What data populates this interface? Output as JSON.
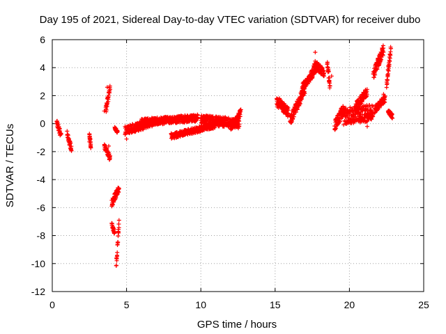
{
  "chart_data": {
    "type": "scatter",
    "title": "Day 195 of 2021, Sidereal Day-to-day VTEC variation (SDTVAR) for receiver dubo",
    "xlabel": "GPS time / hours",
    "ylabel": "SDTVAR / TECUs",
    "xlim": [
      0,
      25
    ],
    "ylim": [
      -12,
      6
    ],
    "xticks": [
      "0",
      "5",
      "10",
      "15",
      "20",
      "25"
    ],
    "yticks": [
      "-12",
      "-10",
      "-8",
      "-6",
      "-4",
      "-2",
      "0",
      "2",
      "4",
      "6"
    ],
    "grid": true,
    "marker": "plus",
    "color": "#ff0000",
    "series": [
      {
        "name": "SDTVAR",
        "segments": [
          {
            "x0": 0.3,
            "x1": 0.6,
            "y0": 0.1,
            "y1": -0.9,
            "spread": 0.4
          },
          {
            "x0": 1.0,
            "x1": 1.3,
            "y0": -0.6,
            "y1": -1.9,
            "spread": 0.5
          },
          {
            "x0": 2.5,
            "x1": 2.6,
            "y0": -0.7,
            "y1": -1.7,
            "spread": 0.3
          },
          {
            "x0": 3.6,
            "x1": 3.9,
            "y0": 1.0,
            "y1": 2.5,
            "spread": 0.6
          },
          {
            "x0": 3.5,
            "x1": 3.9,
            "y0": -1.6,
            "y1": -2.5,
            "spread": 0.4
          },
          {
            "x0": 4.2,
            "x1": 4.4,
            "y0": -0.3,
            "y1": -0.6,
            "spread": 0.2
          },
          {
            "x0": 4.0,
            "x1": 4.5,
            "y0": -5.7,
            "y1": -4.6,
            "spread": 0.5
          },
          {
            "x0": 4.0,
            "x1": 4.2,
            "y0": -7.2,
            "y1": -7.8,
            "spread": 0.3
          },
          {
            "x0": 4.3,
            "x1": 4.5,
            "y0": -10.2,
            "y1": -7.0,
            "spread": 0.5
          },
          {
            "x0": 4.9,
            "x1": 6.8,
            "y0": -0.5,
            "y1": 0.1,
            "spread": 0.6
          },
          {
            "x0": 6.0,
            "x1": 9.8,
            "y0": 0.1,
            "y1": 0.4,
            "spread": 0.5
          },
          {
            "x0": 8.0,
            "x1": 11.0,
            "y0": -0.9,
            "y1": -0.1,
            "spread": 0.4
          },
          {
            "x0": 10.0,
            "x1": 12.6,
            "y0": 0.3,
            "y1": 0.0,
            "spread": 0.7
          },
          {
            "x0": 12.0,
            "x1": 12.7,
            "y0": -0.3,
            "y1": 0.8,
            "spread": 0.5
          },
          {
            "x0": 15.1,
            "x1": 15.9,
            "y0": 1.6,
            "y1": 0.8,
            "spread": 0.7
          },
          {
            "x0": 16.0,
            "x1": 17.0,
            "y0": 0.2,
            "y1": 2.5,
            "spread": 0.7
          },
          {
            "x0": 16.8,
            "x1": 17.8,
            "y0": 2.5,
            "y1": 4.0,
            "spread": 0.6
          },
          {
            "x0": 17.6,
            "x1": 18.3,
            "y0": 4.3,
            "y1": 3.6,
            "spread": 0.6
          },
          {
            "x0": 18.5,
            "x1": 18.7,
            "y0": 4.4,
            "y1": 2.6,
            "spread": 0.6
          },
          {
            "x0": 19.0,
            "x1": 19.6,
            "y0": -0.2,
            "y1": 1.0,
            "spread": 0.8
          },
          {
            "x0": 19.6,
            "x1": 21.6,
            "y0": 0.5,
            "y1": 0.8,
            "spread": 1.2
          },
          {
            "x0": 20.4,
            "x1": 21.2,
            "y0": 1.2,
            "y1": 2.3,
            "spread": 0.6
          },
          {
            "x0": 21.6,
            "x1": 22.3,
            "y0": 3.5,
            "y1": 5.3,
            "spread": 0.7
          },
          {
            "x0": 21.7,
            "x1": 22.4,
            "y0": 1.0,
            "y1": 1.8,
            "spread": 0.5
          },
          {
            "x0": 22.5,
            "x1": 22.8,
            "y0": 2.8,
            "y1": 5.4,
            "spread": 0.6
          },
          {
            "x0": 22.6,
            "x1": 22.9,
            "y0": 0.9,
            "y1": 0.5,
            "spread": 0.3
          }
        ],
        "points": [
          [
            0.3,
            0.0
          ],
          [
            2.5,
            -1.3
          ],
          [
            3.7,
            2.6
          ],
          [
            3.5,
            0.9
          ],
          [
            3.8,
            -1.6
          ],
          [
            5.0,
            -1.1
          ],
          [
            4.9,
            -0.2
          ],
          [
            17.7,
            5.1
          ],
          [
            18.8,
            3.4
          ],
          [
            15.3,
            1.8
          ],
          [
            21.2,
            -0.2
          ],
          [
            22.2,
            5.4
          ],
          [
            22.0,
            4.2
          ],
          [
            22.3,
            2.1
          ],
          [
            22.7,
            0.9
          ]
        ]
      }
    ]
  }
}
